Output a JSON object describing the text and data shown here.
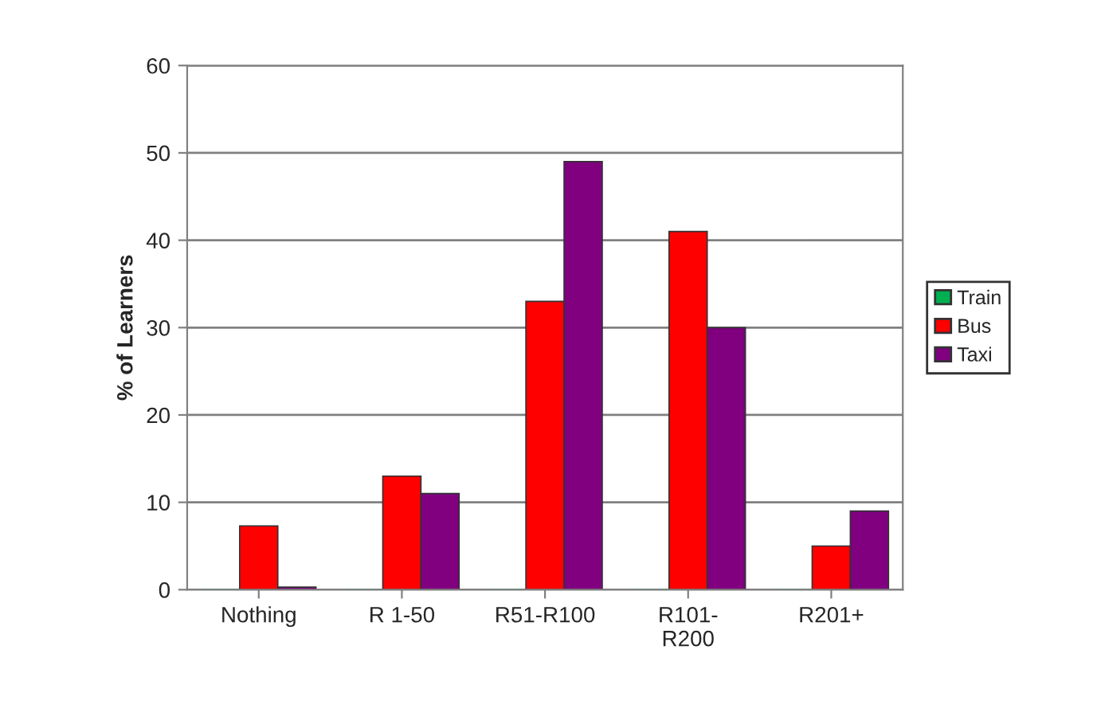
{
  "chart_data": {
    "type": "bar",
    "ylabel": "% of Learners",
    "categories": [
      "Nothing",
      "R 1-50",
      "R51-R100",
      "R101-\nR200",
      "R201+"
    ],
    "series": [
      {
        "name": "Train",
        "color": "#00b050",
        "values": [
          0,
          0,
          0,
          0,
          0
        ]
      },
      {
        "name": "Bus",
        "color": "#ff0000",
        "values": [
          7.3,
          13,
          33,
          41,
          5
        ]
      },
      {
        "name": "Taxi",
        "color": "#800080",
        "values": [
          0.3,
          11,
          49,
          30,
          9
        ]
      }
    ],
    "ylim": [
      0,
      60
    ],
    "yticks": [
      0,
      10,
      20,
      30,
      40,
      50,
      60
    ],
    "grid": "y",
    "legend": "right"
  }
}
